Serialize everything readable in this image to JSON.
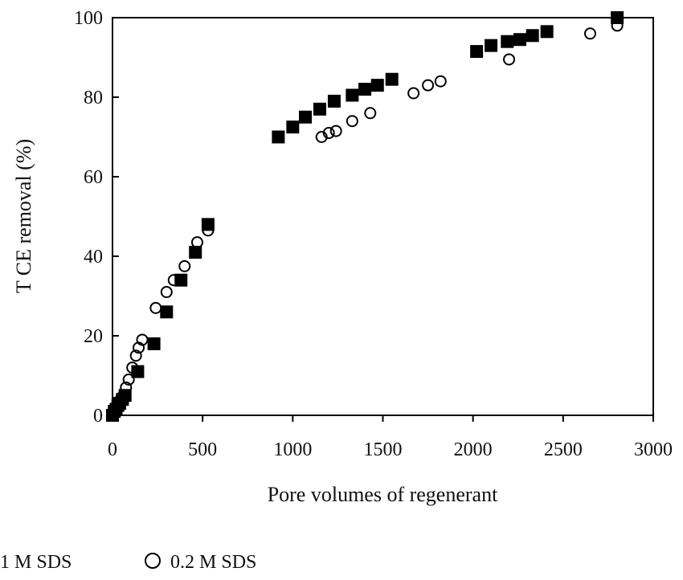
{
  "chart_data": {
    "type": "scatter",
    "xlabel": "Pore volumes of regenerant",
    "ylabel": "T CE removal (%)",
    "xlim": [
      0,
      3000
    ],
    "ylim": [
      0,
      100
    ],
    "xticks": [
      0,
      500,
      1000,
      1500,
      2000,
      2500,
      3000
    ],
    "yticks": [
      0,
      20,
      40,
      60,
      80,
      100
    ],
    "grid": false,
    "legend_position": "bottom-left",
    "series": [
      {
        "name": "1 M SDS",
        "marker": "filled-square",
        "color": "#000000",
        "x": [
          0,
          10,
          20,
          30,
          40,
          55,
          70,
          140,
          230,
          300,
          380,
          460,
          530,
          920,
          1000,
          1070,
          1150,
          1230,
          1330,
          1400,
          1470,
          1550,
          2020,
          2100,
          2190,
          2260,
          2330,
          2410,
          2800
        ],
        "y": [
          0,
          1,
          1.5,
          2.5,
          3,
          4,
          5,
          11,
          18,
          26,
          34,
          41,
          48,
          70,
          72.5,
          75,
          77,
          79,
          80.5,
          82,
          83,
          84.5,
          91.5,
          93,
          94,
          94.5,
          95.5,
          96.5,
          100
        ]
      },
      {
        "name": "0.2 M SDS",
        "marker": "open-circle",
        "color": "#000000",
        "x": [
          5,
          15,
          30,
          45,
          60,
          75,
          90,
          110,
          130,
          145,
          165,
          240,
          300,
          340,
          400,
          470,
          530,
          1160,
          1200,
          1240,
          1330,
          1430,
          1670,
          1750,
          1820,
          2200,
          2650,
          2800
        ],
        "y": [
          1,
          2,
          3,
          4,
          5,
          7,
          9,
          12,
          15,
          17,
          19,
          27,
          31,
          34,
          37.5,
          43.5,
          46.5,
          70,
          71,
          71.5,
          74,
          76,
          81,
          83,
          84,
          89.5,
          96,
          98
        ]
      }
    ]
  },
  "legend": {
    "items": [
      {
        "label": "1 M SDS",
        "symbol": "filled-square"
      },
      {
        "label": "0.2 M SDS",
        "symbol": "open-circle"
      }
    ]
  }
}
